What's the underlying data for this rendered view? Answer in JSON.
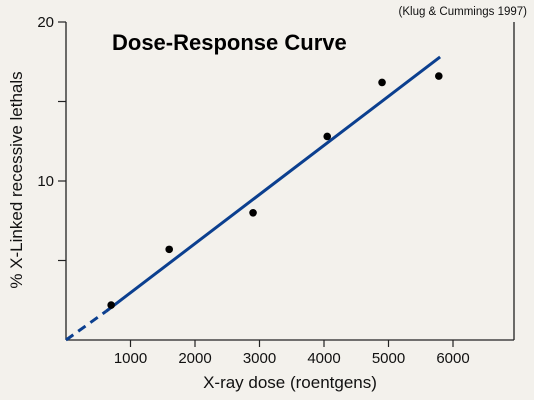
{
  "chart_data": {
    "type": "scatter",
    "title": "Dose-Response Curve",
    "source_note": "(Klug & Cummings 1997)",
    "xlabel": "X-ray dose (roentgens)",
    "ylabel": "% X-Linked recessive lethals",
    "xlim": [
      0,
      7000
    ],
    "ylim": [
      0,
      20
    ],
    "x_ticks": [
      1000,
      2000,
      3000,
      4000,
      5000,
      6000
    ],
    "x_tick_labels": [
      "1000",
      "2000",
      "3000",
      "4000",
      "5000",
      "6000"
    ],
    "y_ticks": [
      5,
      10,
      15,
      20
    ],
    "y_tick_labels": [
      "",
      "10",
      "",
      "20"
    ],
    "points": [
      {
        "x": 700,
        "y": 2.2
      },
      {
        "x": 1600,
        "y": 5.7
      },
      {
        "x": 2900,
        "y": 8.0
      },
      {
        "x": 4050,
        "y": 12.8
      },
      {
        "x": 4900,
        "y": 16.2
      },
      {
        "x": 5780,
        "y": 16.6
      }
    ],
    "fit_line": {
      "solid_from": [
        620,
        1.8
      ],
      "solid_to": [
        5800,
        17.8
      ],
      "dashed_from": [
        0,
        0
      ],
      "dashed_to": [
        620,
        1.8
      ]
    },
    "colors": {
      "fit_line": "#0b3f8f",
      "points": "#000000",
      "background": "#f3f1ec"
    },
    "grid": false,
    "legend": "none"
  }
}
